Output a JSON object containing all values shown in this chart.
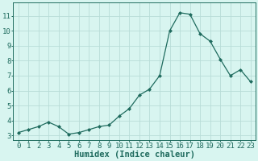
{
  "x": [
    0,
    1,
    2,
    3,
    4,
    5,
    6,
    7,
    8,
    9,
    10,
    11,
    12,
    13,
    14,
    15,
    16,
    17,
    18,
    19,
    20,
    21,
    22,
    23
  ],
  "y": [
    3.2,
    3.4,
    3.6,
    3.9,
    3.6,
    3.1,
    3.2,
    3.4,
    3.6,
    3.7,
    4.3,
    4.8,
    5.7,
    6.1,
    7.0,
    10.0,
    11.2,
    11.1,
    9.8,
    9.3,
    8.1,
    7.0,
    7.4,
    6.6
  ],
  "line_color": "#1f6b5e",
  "bg_color": "#d8f5f0",
  "grid_color": "#b8ddd8",
  "xlabel": "Humidex (Indice chaleur)",
  "ylabel_ticks": [
    3,
    4,
    5,
    6,
    7,
    8,
    9,
    10,
    11
  ],
  "xlim": [
    -0.5,
    23.5
  ],
  "ylim": [
    2.7,
    11.9
  ],
  "tick_color": "#1f6b5e",
  "label_color": "#1f6b5e",
  "font_size_axis": 6.5,
  "font_size_label": 7.5,
  "marker_size": 2.0,
  "line_width": 0.9
}
